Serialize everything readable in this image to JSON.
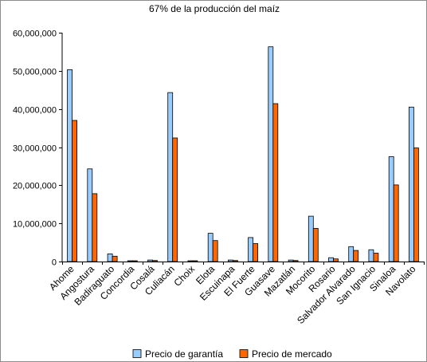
{
  "chart_data": {
    "type": "bar",
    "title": "67% de la producción del maíz",
    "xlabel": "",
    "ylabel": "",
    "ylim": [
      0,
      60000000
    ],
    "yticks": [
      0,
      10000000,
      20000000,
      30000000,
      40000000,
      50000000,
      60000000
    ],
    "ytick_labels": [
      "0",
      "10,000,000",
      "20,000,000",
      "30,000,000",
      "40,000,000",
      "50,000,000",
      "60,000,000"
    ],
    "grid": false,
    "legend_position": "bottom",
    "categories": [
      "Ahome",
      "Angostura",
      "Badiraguato",
      "Concordia",
      "Cosalá",
      "Culiacán",
      "Choix",
      "Elota",
      "Escuinapa",
      "El Fuerte",
      "Guasave",
      "Mazatlán",
      "Mocorito",
      "Rosario",
      "Salvador Alvarado",
      "San Ignacio",
      "Sinaloa",
      "Navolato"
    ],
    "series": [
      {
        "name": "Precio de garantía",
        "color": "#99ccff",
        "values": [
          50300000,
          24300000,
          2000000,
          100000,
          400000,
          44300000,
          100000,
          7400000,
          400000,
          6300000,
          56300000,
          400000,
          11900000,
          1000000,
          3900000,
          3100000,
          27500000,
          40500000
        ]
      },
      {
        "name": "Precio de mercado",
        "color": "#ff6600",
        "values": [
          37000000,
          17800000,
          1400000,
          70000,
          280000,
          32400000,
          70000,
          5500000,
          280000,
          4700000,
          41400000,
          280000,
          8700000,
          700000,
          2900000,
          2200000,
          20100000,
          29800000
        ]
      }
    ]
  }
}
